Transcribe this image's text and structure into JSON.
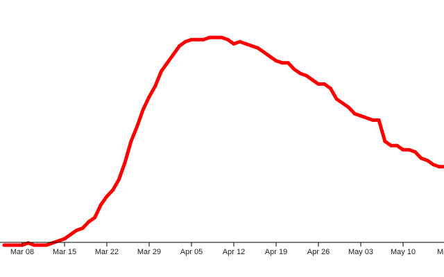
{
  "chart_data": {
    "type": "line",
    "title": "",
    "xlabel": "",
    "ylabel": "",
    "x_axis": {
      "kind": "date",
      "year": 2020,
      "range": [
        "2020-03-05",
        "2020-05-17"
      ],
      "ticks": [
        {
          "date": "2020-03-08",
          "label": "Mar 08"
        },
        {
          "date": "2020-03-15",
          "label": "Mar 15"
        },
        {
          "date": "2020-03-22",
          "label": "Mar 22"
        },
        {
          "date": "2020-03-29",
          "label": "Mar 29"
        },
        {
          "date": "2020-04-05",
          "label": "Apr 05"
        },
        {
          "date": "2020-04-12",
          "label": "Apr 12"
        },
        {
          "date": "2020-04-19",
          "label": "Apr 19"
        },
        {
          "date": "2020-04-26",
          "label": "Apr 26"
        },
        {
          "date": "2020-05-03",
          "label": "May 03"
        },
        {
          "date": "2020-05-10",
          "label": "May 10"
        },
        {
          "date": "2020-05-17",
          "label": "Ma"
        }
      ]
    },
    "y_axis": {
      "shown": false,
      "range": [
        0,
        100
      ]
    },
    "grid": false,
    "legend": "none",
    "series": [
      {
        "color": "#ff0000",
        "points": [
          [
            "2020-03-05",
            0
          ],
          [
            "2020-03-06",
            0
          ],
          [
            "2020-03-07",
            0
          ],
          [
            "2020-03-08",
            0
          ],
          [
            "2020-03-09",
            1
          ],
          [
            "2020-03-10",
            0
          ],
          [
            "2020-03-11",
            0
          ],
          [
            "2020-03-12",
            0
          ],
          [
            "2020-03-13",
            1
          ],
          [
            "2020-03-14",
            2
          ],
          [
            "2020-03-15",
            3
          ],
          [
            "2020-03-16",
            5
          ],
          [
            "2020-03-17",
            7
          ],
          [
            "2020-03-18",
            8
          ],
          [
            "2020-03-19",
            11
          ],
          [
            "2020-03-20",
            13
          ],
          [
            "2020-03-21",
            19
          ],
          [
            "2020-03-22",
            23
          ],
          [
            "2020-03-23",
            26
          ],
          [
            "2020-03-24",
            31
          ],
          [
            "2020-03-25",
            39
          ],
          [
            "2020-03-26",
            49
          ],
          [
            "2020-03-27",
            56
          ],
          [
            "2020-03-28",
            64
          ],
          [
            "2020-03-29",
            70
          ],
          [
            "2020-03-30",
            75
          ],
          [
            "2020-03-31",
            82
          ],
          [
            "2020-04-01",
            86
          ],
          [
            "2020-04-02",
            90
          ],
          [
            "2020-04-03",
            94
          ],
          [
            "2020-04-04",
            96
          ],
          [
            "2020-04-05",
            97
          ],
          [
            "2020-04-06",
            97
          ],
          [
            "2020-04-07",
            97
          ],
          [
            "2020-04-08",
            98
          ],
          [
            "2020-04-09",
            98
          ],
          [
            "2020-04-10",
            98
          ],
          [
            "2020-04-11",
            97
          ],
          [
            "2020-04-12",
            95
          ],
          [
            "2020-04-13",
            96
          ],
          [
            "2020-04-14",
            95
          ],
          [
            "2020-04-15",
            94
          ],
          [
            "2020-04-16",
            93
          ],
          [
            "2020-04-17",
            91
          ],
          [
            "2020-04-18",
            89
          ],
          [
            "2020-04-19",
            87
          ],
          [
            "2020-04-20",
            86
          ],
          [
            "2020-04-21",
            86
          ],
          [
            "2020-04-22",
            83
          ],
          [
            "2020-04-23",
            81
          ],
          [
            "2020-04-24",
            80
          ],
          [
            "2020-04-25",
            78
          ],
          [
            "2020-04-26",
            76
          ],
          [
            "2020-04-27",
            76
          ],
          [
            "2020-04-28",
            74
          ],
          [
            "2020-04-29",
            69
          ],
          [
            "2020-04-30",
            67
          ],
          [
            "2020-05-01",
            65
          ],
          [
            "2020-05-02",
            62
          ],
          [
            "2020-05-03",
            61
          ],
          [
            "2020-05-04",
            60
          ],
          [
            "2020-05-05",
            59
          ],
          [
            "2020-05-06",
            59
          ],
          [
            "2020-05-07",
            49
          ],
          [
            "2020-05-08",
            47
          ],
          [
            "2020-05-09",
            47
          ],
          [
            "2020-05-10",
            45
          ],
          [
            "2020-05-11",
            45
          ],
          [
            "2020-05-12",
            44
          ],
          [
            "2020-05-13",
            41
          ],
          [
            "2020-05-14",
            40
          ],
          [
            "2020-05-15",
            38
          ],
          [
            "2020-05-16",
            37
          ],
          [
            "2020-05-17",
            37
          ]
        ]
      }
    ]
  }
}
